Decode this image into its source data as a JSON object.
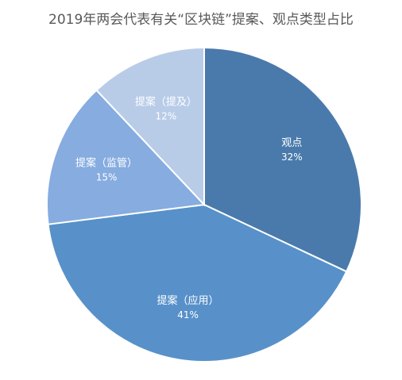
{
  "chart_data": {
    "type": "pie",
    "title": "2019年两会代表有关“区块链”提案、观点类型占比",
    "slices": [
      {
        "label": "观点",
        "value": 32,
        "value_label": "32%",
        "color": "#4a7aab",
        "text_color": "#ffffff"
      },
      {
        "label": "提案（应用）",
        "value": 41,
        "value_label": "41%",
        "color": "#5891c9",
        "text_color": "#ffffff"
      },
      {
        "label": "提案（监管）",
        "value": 15,
        "value_label": "15%",
        "color": "#86ace0",
        "text_color": "#ffffff"
      },
      {
        "label": "提案（提及）",
        "value": 12,
        "value_label": "12%",
        "color": "#b8cce8",
        "text_color": "#ffffff"
      }
    ],
    "start_angle_deg": 0,
    "direction": "clockwise",
    "legend": "none"
  }
}
